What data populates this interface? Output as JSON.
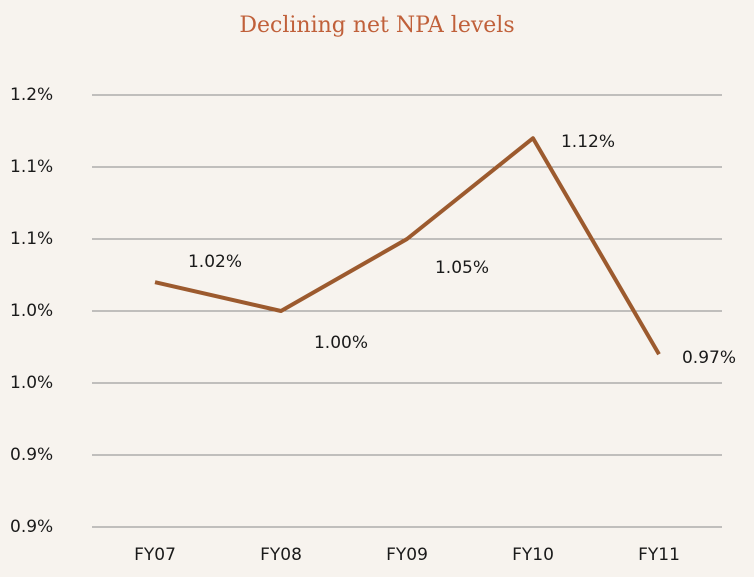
{
  "chart_data": {
    "type": "line",
    "title": "Declining net NPA levels",
    "categories": [
      "FY07",
      "FY08",
      "FY09",
      "FY10",
      "FY11"
    ],
    "series": [
      {
        "name": "Net NPA",
        "color": "#9c5a2e",
        "values": [
          1.02,
          1.0,
          1.05,
          1.12,
          0.97
        ],
        "value_labels": [
          "1.02%",
          "1.00%",
          "1.05%",
          "1.12%",
          "0.97%"
        ]
      }
    ],
    "ylim": [
      0.85,
      1.15
    ],
    "yticks": [
      {
        "value": 0.85,
        "label": "0.9%"
      },
      {
        "value": 0.9,
        "label": "0.9%"
      },
      {
        "value": 0.95,
        "label": "1.0%"
      },
      {
        "value": 1.0,
        "label": "1.0%"
      },
      {
        "value": 1.05,
        "label": "1.1%"
      },
      {
        "value": 1.1,
        "label": "1.1%"
      },
      {
        "value": 1.15,
        "label": "1.2%"
      }
    ],
    "grid": true
  }
}
